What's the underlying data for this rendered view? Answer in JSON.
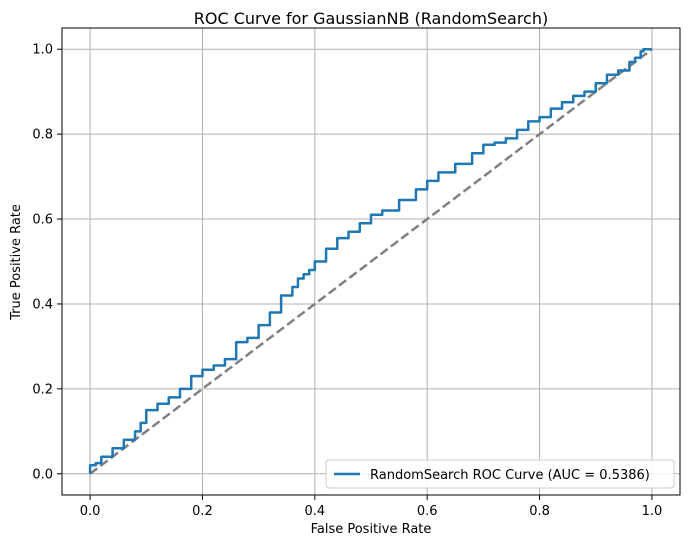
{
  "chart_data": {
    "type": "line",
    "title": "ROC Curve for GaussianNB (RandomSearch)",
    "xlabel": "False Positive Rate",
    "ylabel": "True Positive Rate",
    "xlim": [
      -0.05,
      1.05
    ],
    "ylim": [
      -0.05,
      1.05
    ],
    "xticks": [
      0.0,
      0.2,
      0.4,
      0.6,
      0.8,
      1.0
    ],
    "yticks": [
      0.0,
      0.2,
      0.4,
      0.6,
      0.8,
      1.0
    ],
    "xtick_labels": [
      "0.0",
      "0.2",
      "0.4",
      "0.6",
      "0.8",
      "1.0"
    ],
    "ytick_labels": [
      "0.0",
      "0.2",
      "0.4",
      "0.6",
      "0.8",
      "1.0"
    ],
    "grid": true,
    "legend_position": "lower-right",
    "series": [
      {
        "name": "RandomSearch ROC Curve (AUC = 0.5386)",
        "color": "#1f77b4",
        "style": "solid",
        "x": [
          0.0,
          0.01,
          0.02,
          0.04,
          0.06,
          0.08,
          0.09,
          0.1,
          0.12,
          0.14,
          0.16,
          0.18,
          0.2,
          0.22,
          0.24,
          0.26,
          0.28,
          0.3,
          0.32,
          0.34,
          0.36,
          0.37,
          0.38,
          0.39,
          0.4,
          0.42,
          0.44,
          0.46,
          0.48,
          0.5,
          0.52,
          0.55,
          0.58,
          0.6,
          0.62,
          0.65,
          0.68,
          0.7,
          0.72,
          0.74,
          0.76,
          0.78,
          0.8,
          0.82,
          0.84,
          0.86,
          0.88,
          0.9,
          0.92,
          0.94,
          0.96,
          0.97,
          0.98,
          0.985,
          1.0
        ],
        "y": [
          0.0,
          0.02,
          0.025,
          0.04,
          0.06,
          0.08,
          0.1,
          0.12,
          0.15,
          0.165,
          0.18,
          0.2,
          0.23,
          0.245,
          0.255,
          0.27,
          0.31,
          0.32,
          0.35,
          0.38,
          0.42,
          0.44,
          0.46,
          0.47,
          0.48,
          0.5,
          0.53,
          0.555,
          0.57,
          0.59,
          0.61,
          0.62,
          0.645,
          0.67,
          0.69,
          0.71,
          0.73,
          0.755,
          0.775,
          0.78,
          0.79,
          0.81,
          0.83,
          0.84,
          0.86,
          0.875,
          0.89,
          0.9,
          0.92,
          0.94,
          0.95,
          0.97,
          0.98,
          0.995,
          1.0
        ]
      },
      {
        "name": "",
        "color": "#808080",
        "style": "dashed",
        "x": [
          0.0,
          1.0
        ],
        "y": [
          0.0,
          1.0
        ]
      }
    ]
  }
}
